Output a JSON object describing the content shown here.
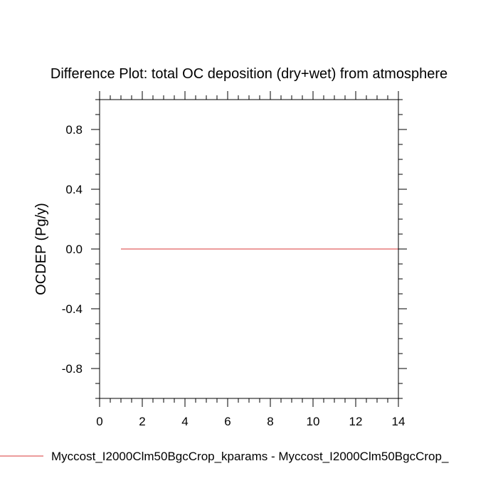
{
  "chart_data": {
    "type": "line",
    "title": "Difference Plot: total OC deposition (dry+wet) from atmosphere",
    "ylabel": "OCDEP  (Pg/y)",
    "xlabel": "",
    "xlim": [
      0,
      14
    ],
    "ylim": [
      -1,
      1
    ],
    "x_ticks": [
      0,
      2,
      4,
      6,
      8,
      10,
      12,
      14
    ],
    "x_tick_labels": [
      "0",
      "2",
      "4",
      "6",
      "8",
      "10",
      "12",
      "14"
    ],
    "y_ticks": [
      -0.8,
      -0.4,
      0.0,
      0.4,
      0.8
    ],
    "y_tick_labels": [
      "-0.8",
      "-0.4",
      "0.0",
      "0.4",
      "0.8"
    ],
    "grid": false,
    "legend_position": "bottom",
    "series": [
      {
        "name": "Myccost_I2000Clm50BgcCrop_kparams - Myccost_I2000Clm50BgcCrop_",
        "color": "#e06060",
        "x": [
          1,
          2,
          3,
          4,
          5,
          6,
          7,
          8,
          9,
          10,
          11,
          12,
          13,
          14
        ],
        "y": [
          0,
          0,
          0,
          0,
          0,
          0,
          0,
          0,
          0,
          0,
          0,
          0,
          0,
          0
        ]
      }
    ]
  }
}
